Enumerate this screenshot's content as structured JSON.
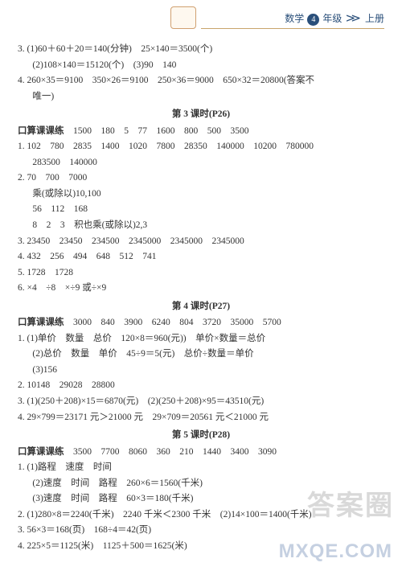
{
  "header": {
    "subject": "数学",
    "grade_num": "4",
    "grade_label": "年级",
    "volume": "上册"
  },
  "block1": {
    "l1": "3. (1)60＋60＋20＝140(分钟)　25×140＝3500(个)",
    "l2": "(2)108×140＝15120(个)　(3)90　140",
    "l3": "4. 260×35＝9100　350×26＝9100　250×36＝9000　650×32＝20800(答案不",
    "l4": "唯一)"
  },
  "sec3": {
    "title": "第 3 课时(P26)",
    "k": "口算课课练　1500　180　5　77　1600　800　500　3500",
    "l1": "1. 102　780　2835　1400　1020　7800　28350　140000　10200　780000",
    "l1b": "283500　140000",
    "l2": "2. 70　700　7000",
    "l2b": "乘(或除以)10,100",
    "l2c": "56　112　168",
    "l2d": "8　2　3　积也乘(或除以)2,3",
    "l3": "3. 23450　23450　234500　2345000　2345000　2345000",
    "l4": "4. 432　256　494　648　512　741",
    "l5": "5. 1728　1728",
    "l6": "6. ×4　÷8　×÷9 或÷×9"
  },
  "sec4": {
    "title": "第 4 课时(P27)",
    "k": "口算课课练　3000　840　3900　6240　804　3720　35000　5700",
    "l1": "1. (1)单价　数量　总价　120×8＝960(元))　单价×数量＝总价",
    "l1b": "(2)总价　数量　单价　45÷9＝5(元)　总价÷数量＝单价",
    "l1c": "(3)156",
    "l2": "2. 10148　29028　28800",
    "l3": "3. (1)(250＋208)×15＝6870(元)　(2)(250＋208)×95＝43510(元)",
    "l4": "4. 29×799＝23171 元＞21000 元　29×709＝20561 元＜21000 元"
  },
  "sec5": {
    "title": "第 5 课时(P28)",
    "k": "口算课课练　3500　7700　8060　360　210　1440　3400　3090",
    "l1": "1. (1)路程　速度　时间",
    "l1b": "(2)速度　时间　路程　260×6＝1560(千米)",
    "l1c": "(3)速度　时间　路程　60×3＝180(千米)",
    "l2": "2. (1)280×8＝2240(千米)　2240 千米＜2300 千米　(2)14×100＝1400(千米)",
    "l3": "3. 56×3＝168(页)　168÷4＝42(页)",
    "l4": "4. 225×5＝1125(米)　1125＋500＝1625(米)"
  },
  "watermark1": "答案圈",
  "watermark2": "MXQE.COM"
}
